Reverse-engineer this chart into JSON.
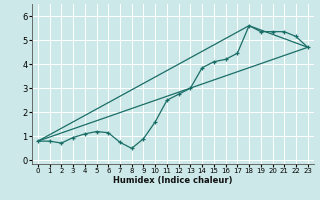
{
  "xlabel": "Humidex (Indice chaleur)",
  "background_color": "#cde8e8",
  "grid_color": "#ffffff",
  "line_color": "#1a6e68",
  "xlim": [
    -0.5,
    23.5
  ],
  "ylim": [
    -0.15,
    6.5
  ],
  "xticks": [
    0,
    1,
    2,
    3,
    4,
    5,
    6,
    7,
    8,
    9,
    10,
    11,
    12,
    13,
    14,
    15,
    16,
    17,
    18,
    19,
    20,
    21,
    22,
    23
  ],
  "yticks": [
    0,
    1,
    2,
    3,
    4,
    5,
    6
  ],
  "line1_x": [
    0,
    1,
    2,
    3,
    4,
    5,
    6,
    7,
    8,
    9,
    10,
    11,
    12,
    13,
    14,
    15,
    16,
    17,
    18,
    19,
    20,
    21,
    22,
    23
  ],
  "line1_y": [
    0.8,
    0.8,
    0.72,
    0.95,
    1.1,
    1.2,
    1.15,
    0.75,
    0.5,
    0.9,
    1.6,
    2.5,
    2.75,
    3.0,
    3.85,
    4.1,
    4.2,
    4.45,
    5.6,
    5.35,
    5.35,
    5.35,
    5.15,
    4.7
  ],
  "line2_x": [
    0,
    23
  ],
  "line2_y": [
    0.8,
    4.7
  ],
  "line3_x": [
    0,
    18,
    23
  ],
  "line3_y": [
    0.8,
    5.6,
    4.7
  ],
  "xlabel_fontsize": 6.0,
  "tick_fontsize_x": 5.0,
  "tick_fontsize_y": 6.0
}
